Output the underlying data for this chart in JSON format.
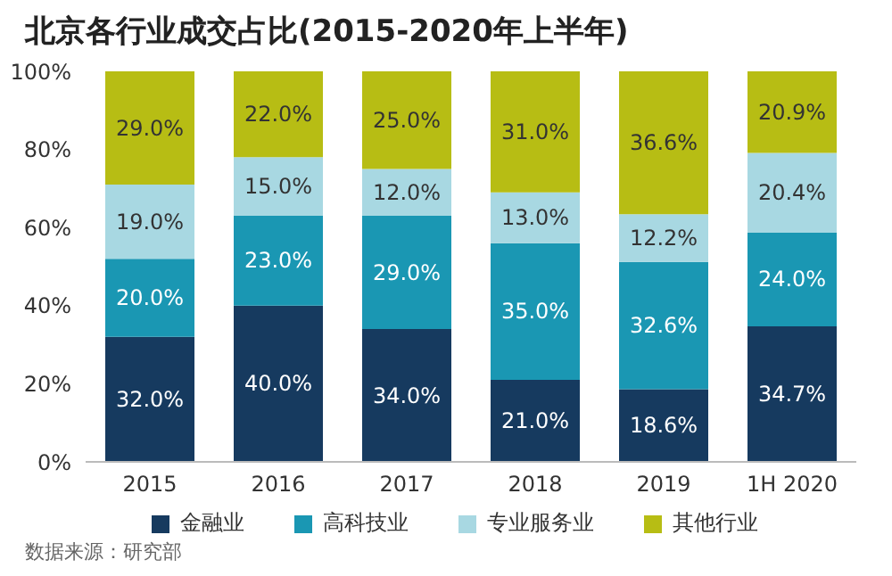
{
  "chart_data": {
    "type": "bar",
    "title": "北京各行业成交占比(2015-2020年上半年)",
    "categories": [
      "2015",
      "2016",
      "2017",
      "2018",
      "2019",
      "1H 2020"
    ],
    "stacked": true,
    "series": [
      {
        "name": "金融业",
        "color": "#163a5f",
        "values": [
          32.0,
          40.0,
          34.0,
          21.0,
          18.6,
          34.7
        ],
        "value_labels": [
          "32.0%",
          "40.0%",
          "34.0%",
          "21.0%",
          "18.6%",
          "34.7%"
        ]
      },
      {
        "name": "高科技业",
        "color": "#1a97b3",
        "values": [
          20.0,
          23.0,
          29.0,
          35.0,
          32.6,
          24.0
        ],
        "value_labels": [
          "20.0%",
          "23.0%",
          "29.0%",
          "35.0%",
          "32.6%",
          "24.0%"
        ]
      },
      {
        "name": "专业服务业",
        "color": "#a8d8e2",
        "values": [
          19.0,
          15.0,
          12.0,
          13.0,
          12.2,
          20.4
        ],
        "value_labels": [
          "19.0%",
          "15.0%",
          "12.0%",
          "13.0%",
          "12.2%",
          "20.4%"
        ]
      },
      {
        "name": "其他行业",
        "color": "#b7bd14",
        "values": [
          29.0,
          22.0,
          25.0,
          31.0,
          36.6,
          20.9
        ],
        "value_labels": [
          "29.0%",
          "22.0%",
          "25.0%",
          "31.0%",
          "36.6%",
          "20.9%"
        ]
      }
    ],
    "ylim": [
      0,
      100
    ],
    "yticks": [
      {
        "value": 0,
        "label": "0%"
      },
      {
        "value": 20,
        "label": "20%"
      },
      {
        "value": 40,
        "label": "40%"
      },
      {
        "value": 60,
        "label": "60%"
      },
      {
        "value": 80,
        "label": "80%"
      },
      {
        "value": 100,
        "label": "100%"
      }
    ],
    "grid": false,
    "legend": "bottom",
    "annotations": [
      "数据来源：研究部"
    ]
  }
}
